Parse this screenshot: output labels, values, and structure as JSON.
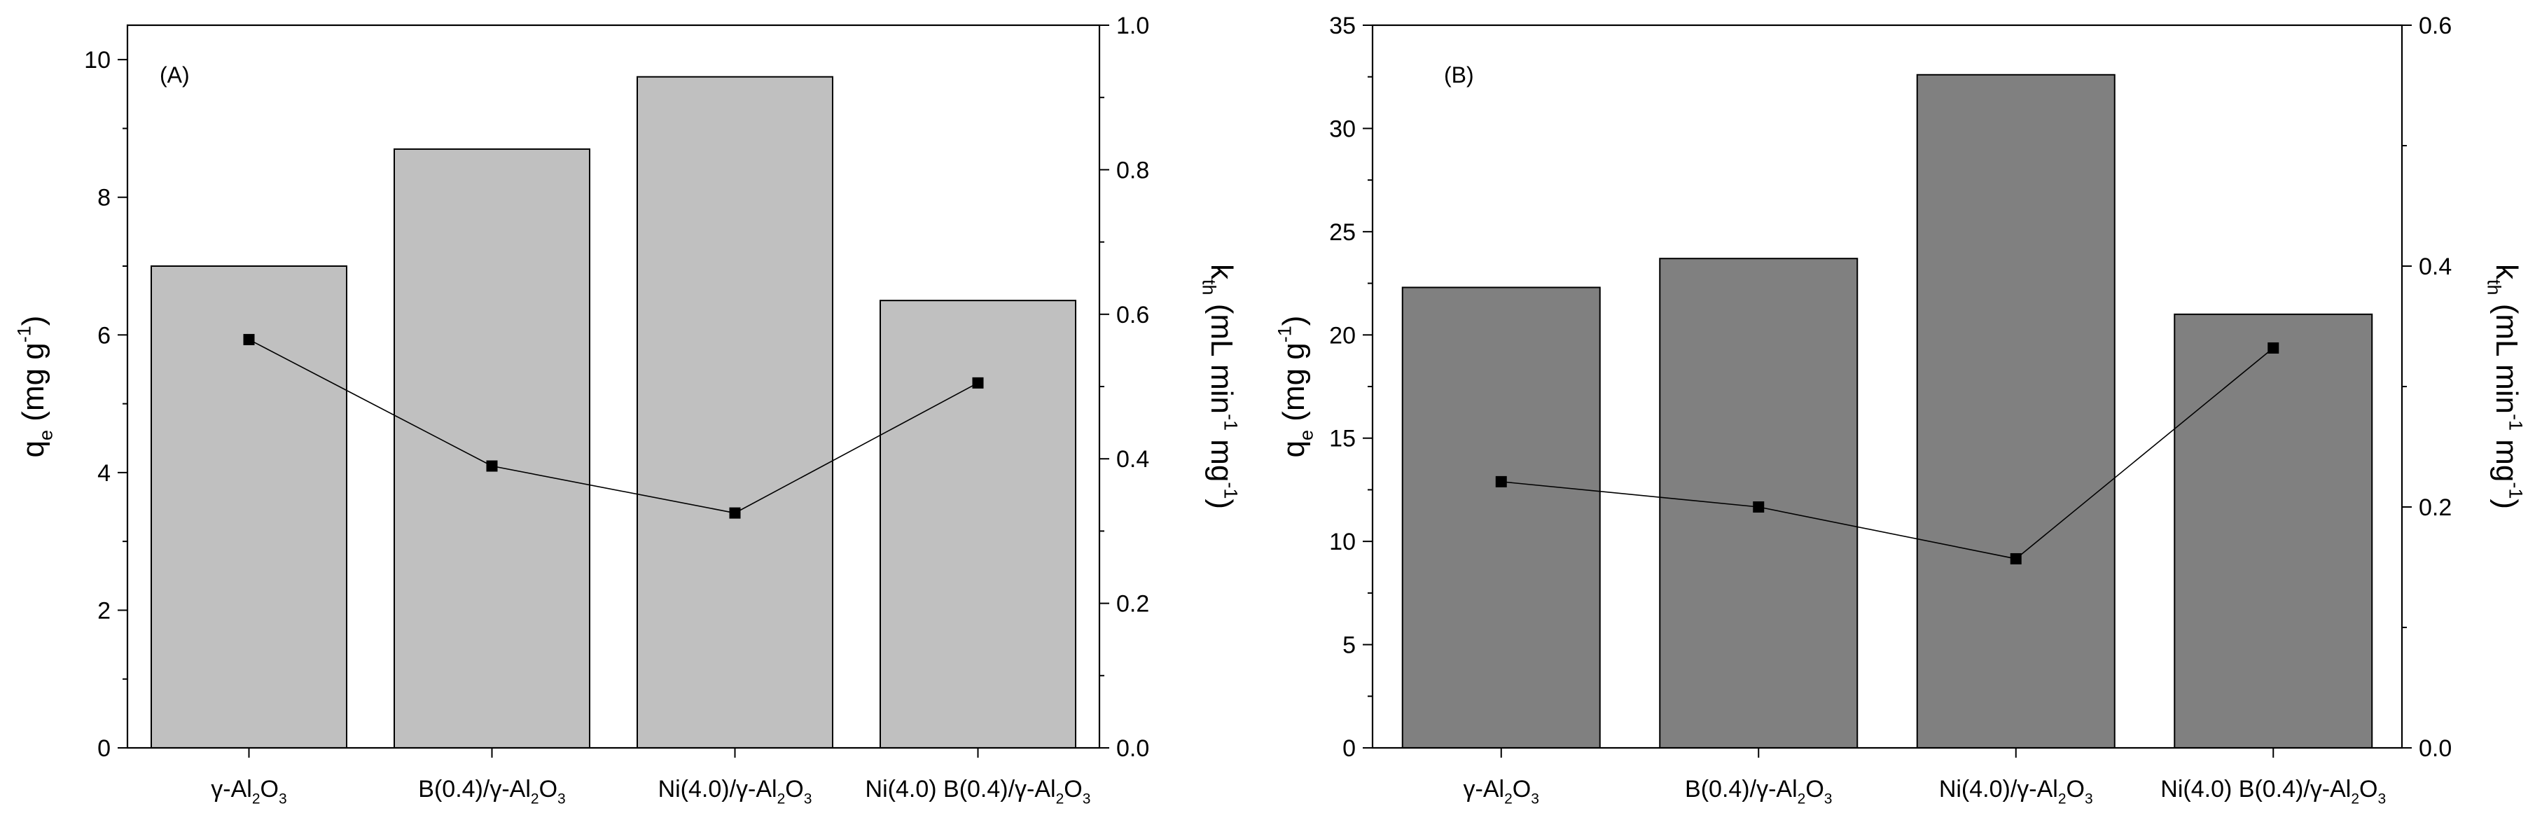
{
  "chart_data": [
    {
      "type": "bar",
      "panel_label": "(A)",
      "categories": [
        "γ-Al2O3",
        "B(0.4)/γ-Al2O3",
        "Ni(4.0)/γ-Al2O3",
        "Ni(4.0) B(0.4)/γ-Al2O3"
      ],
      "category_labels": [
        [
          {
            "t": "γ-Al"
          },
          {
            "t": "2",
            "sub": true
          },
          {
            "t": "O"
          },
          {
            "t": "3",
            "sub": true
          }
        ],
        [
          {
            "t": "B(0.4)/γ-Al"
          },
          {
            "t": "2",
            "sub": true
          },
          {
            "t": "O"
          },
          {
            "t": "3",
            "sub": true
          }
        ],
        [
          {
            "t": "Ni(4.0)/γ-Al"
          },
          {
            "t": "2",
            "sub": true
          },
          {
            "t": "O"
          },
          {
            "t": "3",
            "sub": true
          }
        ],
        [
          {
            "t": "Ni(4.0) B(0.4)/γ-Al"
          },
          {
            "t": "2",
            "sub": true
          },
          {
            "t": "O"
          },
          {
            "t": "3",
            "sub": true
          }
        ]
      ],
      "series": [
        {
          "name": "qe",
          "kind": "bar",
          "axis": "left",
          "values": [
            7.0,
            8.7,
            9.75,
            6.5
          ],
          "color": "#c0c0c0"
        },
        {
          "name": "kth",
          "kind": "line",
          "axis": "right",
          "values": [
            0.565,
            0.39,
            0.325,
            0.505
          ],
          "color": "#000000"
        }
      ],
      "ylabel": "qe (mg g-1)",
      "ylabel_parts": [
        {
          "t": "q"
        },
        {
          "t": "e",
          "sub": true
        },
        {
          "t": " (mg g"
        },
        {
          "t": "-1",
          "sup": true
        },
        {
          "t": ")"
        }
      ],
      "y2label": "kth (mL min-1 mg-1)",
      "y2label_parts": [
        {
          "t": "k"
        },
        {
          "t": "th",
          "sub": true
        },
        {
          "t": " (mL min"
        },
        {
          "t": "-1",
          "sup": true
        },
        {
          "t": " mg"
        },
        {
          "t": "-1",
          "sup": true
        },
        {
          "t": ")"
        }
      ],
      "ylim": [
        0,
        10.5
      ],
      "yticks": [
        0,
        2,
        4,
        6,
        8,
        10
      ],
      "ytick_labels": [
        "0",
        "2",
        "4",
        "6",
        "8",
        "10"
      ],
      "y2lim": [
        0,
        1.0
      ],
      "y2ticks": [
        0,
        0.2,
        0.4,
        0.6,
        0.8,
        1.0
      ],
      "y2tick_labels": [
        "0.0",
        "0.2",
        "0.4",
        "0.6",
        "0.8",
        "1.0"
      ],
      "grid": false
    },
    {
      "type": "bar",
      "panel_label": "(B)",
      "categories": [
        "γ-Al2O3",
        "B(0.4)/γ-Al2O3",
        "Ni(4.0)/γ-Al2O3",
        "Ni(4.0) B(0.4)/γ-Al2O3"
      ],
      "category_labels": [
        [
          {
            "t": "γ-Al"
          },
          {
            "t": "2",
            "sub": true
          },
          {
            "t": "O"
          },
          {
            "t": "3",
            "sub": true
          }
        ],
        [
          {
            "t": "B(0.4)/γ-Al"
          },
          {
            "t": "2",
            "sub": true
          },
          {
            "t": "O"
          },
          {
            "t": "3",
            "sub": true
          }
        ],
        [
          {
            "t": "Ni(4.0)/γ-Al"
          },
          {
            "t": "2",
            "sub": true
          },
          {
            "t": "O"
          },
          {
            "t": "3",
            "sub": true
          }
        ],
        [
          {
            "t": "Ni(4.0) B(0.4)/γ-Al"
          },
          {
            "t": "2",
            "sub": true
          },
          {
            "t": "O"
          },
          {
            "t": "3",
            "sub": true
          }
        ]
      ],
      "series": [
        {
          "name": "qe",
          "kind": "bar",
          "axis": "left",
          "values": [
            22.3,
            23.7,
            32.6,
            21.0
          ],
          "color": "#808080"
        },
        {
          "name": "kth",
          "kind": "line",
          "axis": "right",
          "values": [
            0.221,
            0.2,
            0.157,
            0.332
          ],
          "color": "#000000"
        }
      ],
      "ylabel": "qe (mg g-1)",
      "ylabel_parts": [
        {
          "t": "q"
        },
        {
          "t": "e",
          "sub": true
        },
        {
          "t": " (mg g"
        },
        {
          "t": "-1",
          "sup": true
        },
        {
          "t": ")"
        }
      ],
      "y2label": "kth (mL min-1 mg-1)",
      "y2label_parts": [
        {
          "t": "k"
        },
        {
          "t": "th",
          "sub": true
        },
        {
          "t": " (mL min"
        },
        {
          "t": "-1",
          "sup": true
        },
        {
          "t": " mg"
        },
        {
          "t": "-1",
          "sup": true
        },
        {
          "t": ")"
        }
      ],
      "ylim": [
        0,
        35
      ],
      "yticks": [
        0,
        5,
        10,
        15,
        20,
        25,
        30,
        35
      ],
      "ytick_labels": [
        "0",
        "5",
        "10",
        "15",
        "20",
        "25",
        "30",
        "35"
      ],
      "y2lim": [
        0,
        0.6
      ],
      "y2ticks": [
        0,
        0.2,
        0.4,
        0.6
      ],
      "y2tick_labels": [
        "0.0",
        "0.2",
        "0.4",
        "0.6"
      ],
      "grid": false
    }
  ]
}
